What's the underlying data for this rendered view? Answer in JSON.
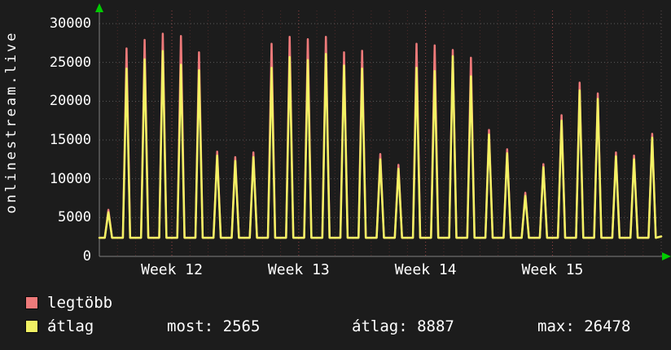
{
  "chart_data": {
    "type": "line",
    "title": "onlinestream.live",
    "ylim": [
      0,
      30000
    ],
    "y_ticks": [
      0,
      5000,
      10000,
      15000,
      20000,
      25000,
      30000
    ],
    "x_tick_labels": [
      "Week 12",
      "Week 13",
      "Week 14",
      "Week 15"
    ],
    "week_start_days": [
      4,
      11,
      18,
      25
    ],
    "base": 2400,
    "end_value": 2565,
    "series": [
      {
        "name": "legtöbb",
        "color": "#ee7a7a",
        "peaks": [
          6000,
          26800,
          27900,
          28700,
          28400,
          26300,
          13500,
          12800,
          13400,
          27400,
          28300,
          28000,
          28300,
          26300,
          26500,
          13200,
          11800,
          27400,
          27200,
          26600,
          25600,
          16300,
          13800,
          8200,
          11900,
          18200,
          22400,
          21000,
          13400,
          13000,
          15800
        ]
      },
      {
        "name": "átlag",
        "color": "#f2f264",
        "peaks": [
          5700,
          24200,
          25400,
          26478,
          24700,
          24000,
          13000,
          12300,
          12800,
          24300,
          25700,
          25300,
          26100,
          24600,
          24200,
          12500,
          11300,
          24300,
          23900,
          25800,
          23200,
          15700,
          13300,
          7800,
          11500,
          17500,
          21400,
          20300,
          12900,
          12500,
          15300
        ]
      }
    ],
    "colors": {
      "background": "#1c1c1c",
      "text": "#ffffff",
      "grid_horizontal": "#9a9a9a",
      "grid_vertical_minor": "#7a3636",
      "grid_vertical_major": "#b34d4d",
      "axis": "#808080",
      "arrow": "#00cc00"
    }
  },
  "legend": {
    "stats": [
      {
        "label": "most:",
        "value": "2565"
      },
      {
        "label": "átlag:",
        "value": "8887"
      },
      {
        "label": "max:",
        "value": "26478"
      }
    ]
  }
}
